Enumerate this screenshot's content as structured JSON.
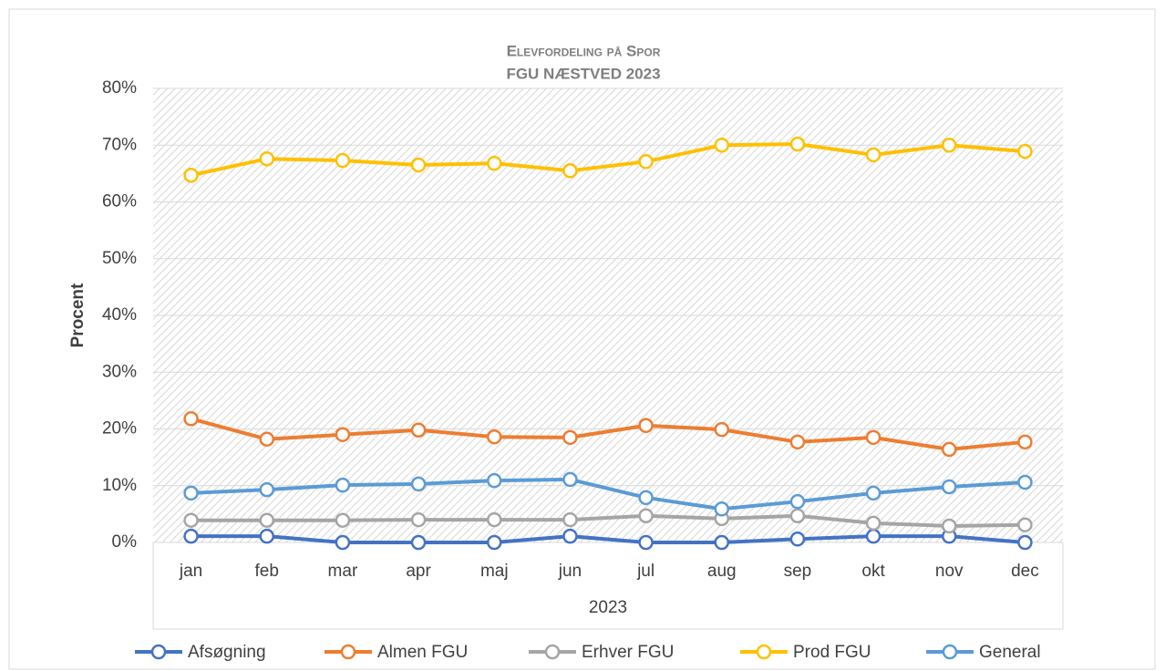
{
  "chart_data": {
    "type": "line",
    "title": "Elevfordeling på Spor",
    "subtitle": "FGU NÆSTVED 2023",
    "y_label": "Procent",
    "x_label": "2023",
    "categories": [
      "jan",
      "feb",
      "mar",
      "apr",
      "maj",
      "jun",
      "jul",
      "aug",
      "sep",
      "okt",
      "nov",
      "dec"
    ],
    "series": [
      {
        "name": "Afsøgning",
        "color": "#4472c4",
        "values": [
          1.1,
          1.1,
          0,
          0,
          0,
          1.1,
          0,
          0,
          0.6,
          1.1,
          1.1,
          0
        ]
      },
      {
        "name": "Almen FGU",
        "color": "#ed7d31",
        "values": [
          21.8,
          18.2,
          19.0,
          19.8,
          18.6,
          18.5,
          20.6,
          19.9,
          17.7,
          18.5,
          16.4,
          17.7
        ]
      },
      {
        "name": "Erhver FGU",
        "color": "#a5a5a5",
        "values": [
          3.9,
          3.9,
          3.9,
          4.0,
          4.0,
          4.0,
          4.7,
          4.2,
          4.7,
          3.4,
          2.9,
          3.1
        ]
      },
      {
        "name": "Prod FGU",
        "color": "#ffc000",
        "values": [
          64.7,
          67.6,
          67.3,
          66.5,
          66.8,
          65.5,
          67.1,
          70.0,
          70.2,
          68.3,
          70.0,
          68.9
        ]
      },
      {
        "name": "General",
        "color": "#5b9bd5",
        "values": [
          8.7,
          9.3,
          10.1,
          10.3,
          10.9,
          11.1,
          7.9,
          5.9,
          7.2,
          8.7,
          9.8,
          10.6
        ]
      }
    ],
    "ylim": [
      0,
      80
    ],
    "yticks": [
      {
        "value": 0,
        "label": "0%"
      },
      {
        "value": 10,
        "label": "10%"
      },
      {
        "value": 20,
        "label": "20%"
      },
      {
        "value": 30,
        "label": "30%"
      },
      {
        "value": 40,
        "label": "40%"
      },
      {
        "value": 50,
        "label": "50%"
      },
      {
        "value": 60,
        "label": "60%"
      },
      {
        "value": 70,
        "label": "70%"
      },
      {
        "value": 80,
        "label": "80%"
      }
    ],
    "grid": true,
    "legend": "bottom"
  }
}
